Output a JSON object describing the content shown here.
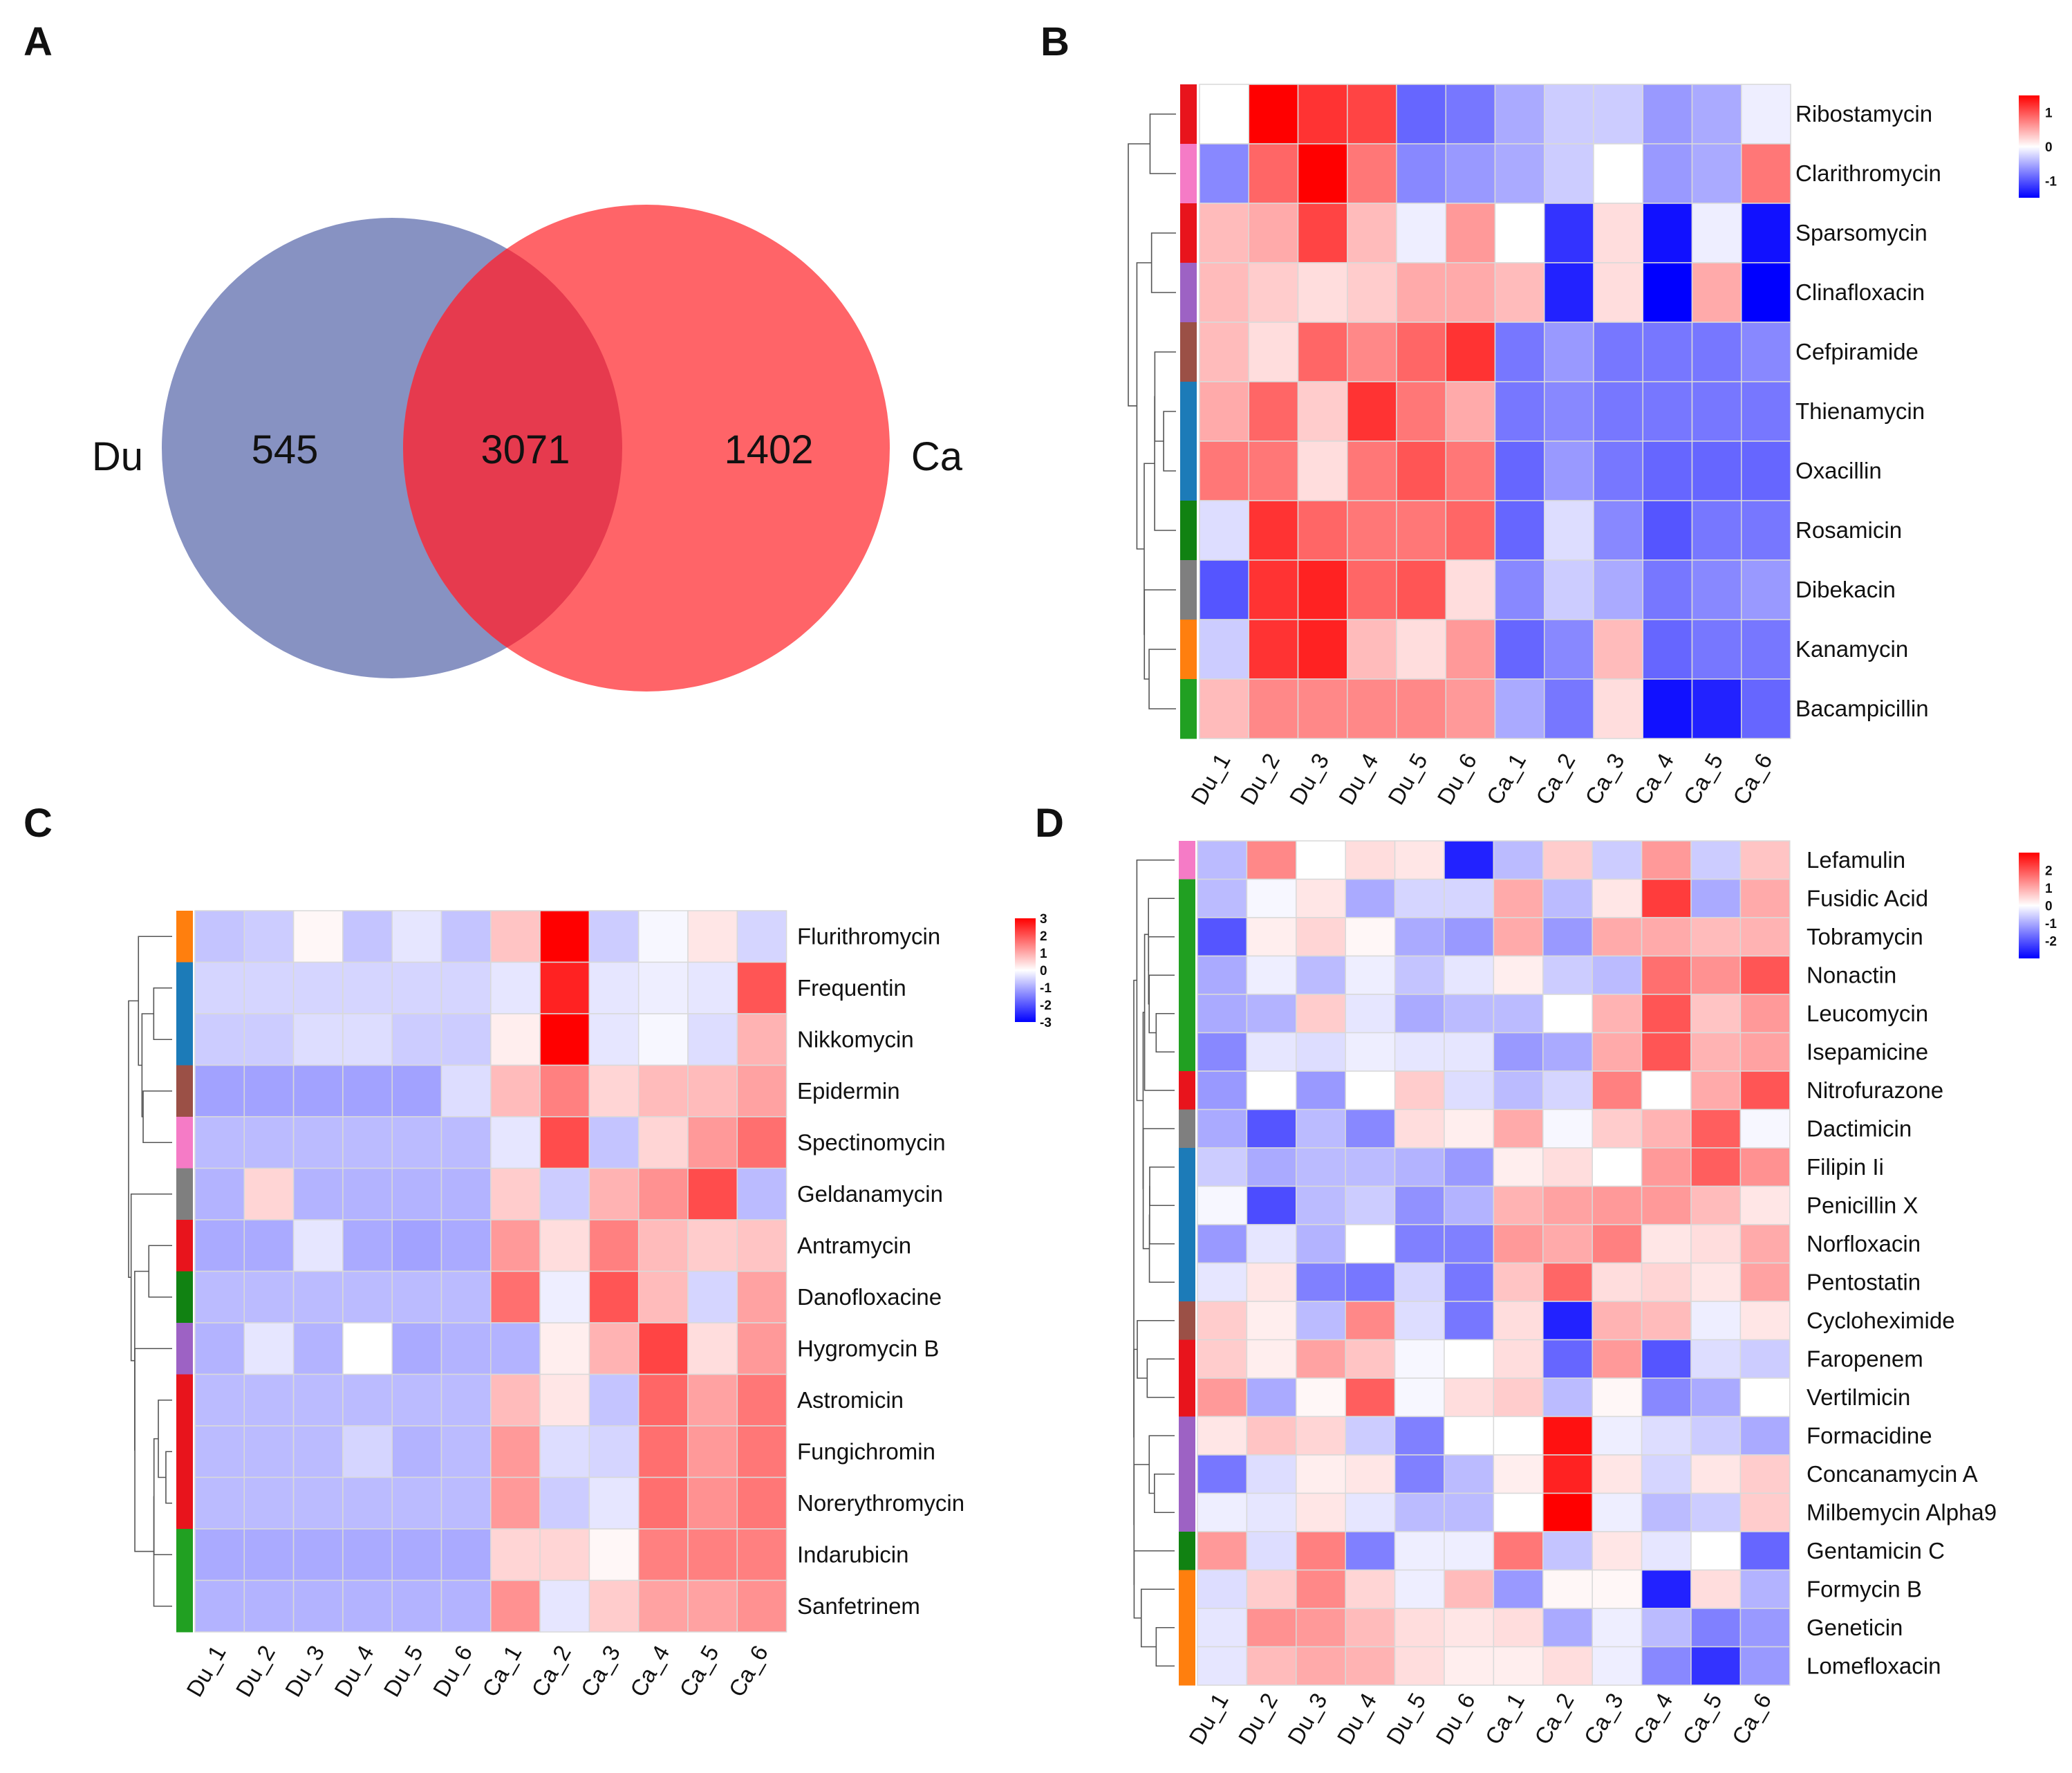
{
  "panel_labels": [
    "A",
    "B",
    "C",
    "D"
  ],
  "chart_data": [
    {
      "type": "venn",
      "panel": "A",
      "sets": [
        {
          "name": "Du",
          "unique": 545,
          "color": "#8792c2"
        },
        {
          "name": "Ca",
          "unique": 1402,
          "color": "#ff6468"
        }
      ],
      "intersection": 3071,
      "intersection_color": "#e63a4e"
    },
    {
      "type": "heatmap",
      "panel": "B",
      "columns": [
        "Du_1",
        "Du_2",
        "Du_3",
        "Du_4",
        "Du_5",
        "Du_6",
        "Ca_1",
        "Ca_2",
        "Ca_3",
        "Ca_4",
        "Ca_5",
        "Ca_6"
      ],
      "rows": [
        "Ribostamycin",
        "Clarithromycin",
        "Sparsomycin",
        "Clinafloxacin",
        "Cefpiramide",
        "Thienamycin",
        "Oxacillin",
        "Rosamicin",
        "Dibekacin",
        "Kanamycin",
        "Bacampicillin"
      ],
      "row_group_colors": [
        "#e8141c",
        "#f57bc6",
        "#e8141c",
        "#9d62c4",
        "#9b5046",
        "#1c7bb8",
        "#1c7bb8",
        "#118212",
        "#7f7f7f",
        "#ff7f0e",
        "#21a022"
      ],
      "values": [
        [
          0.0,
          1.5,
          1.2,
          1.1,
          -0.9,
          -0.8,
          -0.5,
          -0.3,
          -0.3,
          -0.6,
          -0.5,
          -0.1
        ],
        [
          -0.7,
          0.9,
          1.5,
          0.8,
          -0.7,
          -0.6,
          -0.5,
          -0.3,
          0.0,
          -0.6,
          -0.5,
          0.8
        ],
        [
          0.4,
          0.5,
          1.1,
          0.4,
          -0.1,
          0.6,
          0.0,
          -1.2,
          0.2,
          -1.4,
          -0.1,
          -1.4
        ],
        [
          0.4,
          0.3,
          0.2,
          0.3,
          0.5,
          0.5,
          0.4,
          -1.3,
          0.2,
          -1.5,
          0.5,
          -1.5
        ],
        [
          0.4,
          0.2,
          0.9,
          0.7,
          0.9,
          1.2,
          -0.8,
          -0.6,
          -0.8,
          -0.8,
          -0.8,
          -0.7
        ],
        [
          0.5,
          0.9,
          0.3,
          1.2,
          0.8,
          0.5,
          -0.8,
          -0.7,
          -0.8,
          -0.8,
          -0.8,
          -0.8
        ],
        [
          0.8,
          0.8,
          0.2,
          0.8,
          1.0,
          0.8,
          -0.9,
          -0.6,
          -0.8,
          -0.9,
          -0.9,
          -0.9
        ],
        [
          -0.2,
          1.2,
          0.9,
          0.8,
          0.8,
          0.9,
          -0.9,
          -0.2,
          -0.7,
          -1.0,
          -0.8,
          -0.8
        ],
        [
          -1.0,
          1.2,
          1.3,
          0.9,
          1.0,
          0.2,
          -0.7,
          -0.3,
          -0.5,
          -0.8,
          -0.7,
          -0.6
        ],
        [
          -0.3,
          1.2,
          1.3,
          0.4,
          0.2,
          0.6,
          -0.9,
          -0.7,
          0.4,
          -0.9,
          -0.8,
          -0.8
        ],
        [
          0.4,
          0.7,
          0.7,
          0.7,
          0.7,
          0.6,
          -0.5,
          -0.8,
          0.2,
          -1.4,
          -1.3,
          -0.9
        ]
      ],
      "legend": {
        "ticks": [
          1,
          0,
          -1
        ],
        "low_color": "#0000ff",
        "mid_color": "#ffffff",
        "high_color": "#ff0000",
        "min": -1.5,
        "max": 1.5
      }
    },
    {
      "type": "heatmap",
      "panel": "C",
      "columns": [
        "Du_1",
        "Du_2",
        "Du_3",
        "Du_4",
        "Du_5",
        "Du_6",
        "Ca_1",
        "Ca_2",
        "Ca_3",
        "Ca_4",
        "Ca_5",
        "Ca_6"
      ],
      "rows": [
        "Flurithromycin",
        "Frequentin",
        "Nikkomycin",
        "Epidermin",
        "Spectinomycin",
        "Geldanamycin",
        "Antramycin",
        "Danofloxacine",
        "Hygromycin B",
        "Astromicin",
        "Fungichromin",
        "Norerythromycin",
        "Indarubicin",
        "Sanfetrinem"
      ],
      "row_group_colors": [
        "#ff7f0e",
        "#1c7bb8",
        "#1c7bb8",
        "#9b5046",
        "#f57bc6",
        "#7f7f7f",
        "#e8141c",
        "#118212",
        "#9d62c4",
        "#e8141c",
        "#e8141c",
        "#e8141c",
        "#21a022",
        "#21a022"
      ],
      "values": [
        [
          -0.7,
          -0.6,
          0.1,
          -0.7,
          -0.3,
          -0.7,
          0.7,
          3.0,
          -0.6,
          -0.1,
          0.3,
          -0.5
        ],
        [
          -0.5,
          -0.5,
          -0.5,
          -0.5,
          -0.5,
          -0.5,
          -0.3,
          2.6,
          -0.3,
          -0.2,
          -0.3,
          2.0
        ],
        [
          -0.6,
          -0.6,
          -0.4,
          -0.4,
          -0.6,
          -0.6,
          0.2,
          3.0,
          -0.3,
          -0.1,
          -0.4,
          0.9
        ],
        [
          -1.1,
          -1.1,
          -1.1,
          -1.1,
          -1.1,
          -0.4,
          0.8,
          1.5,
          0.5,
          0.8,
          0.8,
          1.1
        ],
        [
          -0.8,
          -0.8,
          -0.8,
          -0.8,
          -0.8,
          -0.8,
          -0.3,
          2.1,
          -0.7,
          0.5,
          1.2,
          1.7
        ],
        [
          -0.9,
          0.5,
          -0.9,
          -0.9,
          -0.9,
          -0.9,
          0.6,
          -0.6,
          0.9,
          1.3,
          2.1,
          -0.8
        ],
        [
          -1.0,
          -1.0,
          -0.3,
          -1.0,
          -1.1,
          -1.0,
          1.2,
          0.4,
          1.5,
          0.8,
          0.6,
          0.7
        ],
        [
          -0.8,
          -0.8,
          -0.8,
          -0.8,
          -0.8,
          -0.8,
          1.7,
          -0.2,
          2.0,
          0.8,
          -0.5,
          1.1
        ],
        [
          -0.9,
          -0.3,
          -0.9,
          0.0,
          -1.0,
          -0.9,
          -0.9,
          0.2,
          0.9,
          2.2,
          0.4,
          1.2
        ],
        [
          -0.8,
          -0.8,
          -0.8,
          -0.8,
          -0.8,
          -0.8,
          0.8,
          0.3,
          -0.7,
          1.8,
          1.1,
          1.6
        ],
        [
          -0.8,
          -0.8,
          -0.8,
          -0.5,
          -0.9,
          -0.8,
          1.2,
          -0.4,
          -0.5,
          1.7,
          1.2,
          1.6
        ],
        [
          -0.8,
          -0.8,
          -0.8,
          -0.8,
          -0.8,
          -0.8,
          1.2,
          -0.6,
          -0.3,
          1.7,
          1.3,
          1.6
        ],
        [
          -1.0,
          -1.0,
          -1.0,
          -1.0,
          -1.0,
          -1.0,
          0.5,
          0.5,
          0.1,
          1.5,
          1.5,
          1.5
        ],
        [
          -0.9,
          -0.9,
          -0.9,
          -0.9,
          -0.9,
          -0.9,
          1.3,
          -0.3,
          0.6,
          1.1,
          1.1,
          1.3
        ]
      ],
      "legend": {
        "ticks": [
          3,
          2,
          1,
          0,
          -1,
          -2,
          -3
        ],
        "low_color": "#0000ff",
        "mid_color": "#ffffff",
        "high_color": "#ff0000",
        "min": -3,
        "max": 3
      }
    },
    {
      "type": "heatmap",
      "panel": "D",
      "columns": [
        "Du_1",
        "Du_2",
        "Du_3",
        "Du_4",
        "Du_5",
        "Du_6",
        "Ca_1",
        "Ca_2",
        "Ca_3",
        "Ca_4",
        "Ca_5",
        "Ca_6"
      ],
      "rows": [
        "Lefamulin",
        "Fusidic Acid",
        "Tobramycin",
        "Nonactin",
        "Leucomycin",
        "Isepamicine",
        "Nitrofurazone",
        "Dactimicin",
        "Filipin Ii",
        "Penicillin X",
        "Norfloxacin",
        "Pentostatin",
        "Cycloheximide",
        "Faropenem",
        "Vertilmicin",
        "Formacidine",
        "Concanamycin A",
        "Milbemycin Alpha9",
        "Gentamicin C",
        "Formycin B",
        "Geneticin",
        "Lomefloxacin"
      ],
      "row_group_colors": [
        "#f57bc6",
        "#21a022",
        "#21a022",
        "#21a022",
        "#21a022",
        "#21a022",
        "#e8141c",
        "#7f7f7f",
        "#1c7bb8",
        "#1c7bb8",
        "#1c7bb8",
        "#1c7bb8",
        "#9b5046",
        "#e8141c",
        "#e8141c",
        "#9d62c4",
        "#9d62c4",
        "#9d62c4",
        "#118212",
        "#ff7f0e",
        "#ff7f0e",
        "#ff7f0e"
      ],
      "values": [
        [
          -0.8,
          1.4,
          0.0,
          0.4,
          0.3,
          -2.6,
          -0.8,
          0.6,
          -0.6,
          1.2,
          -0.6,
          0.7
        ],
        [
          -0.8,
          -0.1,
          0.3,
          -1.0,
          -0.5,
          -0.5,
          1.0,
          -0.8,
          0.3,
          2.3,
          -1.0,
          1.0
        ],
        [
          -2.0,
          0.2,
          0.5,
          0.1,
          -1.0,
          -1.2,
          1.0,
          -1.2,
          1.0,
          1.0,
          0.8,
          0.9
        ],
        [
          -1.0,
          -0.2,
          -0.8,
          -0.2,
          -0.7,
          -0.3,
          0.2,
          -0.6,
          -0.8,
          1.7,
          1.3,
          2.0
        ],
        [
          -1.0,
          -0.9,
          0.6,
          -0.3,
          -1.0,
          -0.8,
          -0.8,
          0.0,
          0.9,
          2.0,
          0.7,
          1.2
        ],
        [
          -1.4,
          -0.3,
          -0.4,
          -0.2,
          -0.3,
          -0.3,
          -1.2,
          -1.0,
          1.0,
          2.0,
          0.9,
          1.1
        ],
        [
          -1.2,
          0.0,
          -1.2,
          0.0,
          0.6,
          -0.4,
          -0.8,
          -0.5,
          1.5,
          0.0,
          1.0,
          2.0
        ],
        [
          -1.0,
          -2.0,
          -0.8,
          -1.4,
          0.4,
          0.2,
          1.0,
          -0.1,
          0.6,
          0.9,
          1.9,
          -0.1
        ],
        [
          -0.6,
          -1.0,
          -0.8,
          -0.8,
          -0.9,
          -1.2,
          0.2,
          0.4,
          0.0,
          1.2,
          1.9,
          1.3
        ],
        [
          -0.1,
          -2.1,
          -0.8,
          -0.6,
          -1.3,
          -0.9,
          0.9,
          1.1,
          1.2,
          1.2,
          0.8,
          0.3
        ],
        [
          -1.2,
          -0.3,
          -0.9,
          0.0,
          -1.5,
          -1.5,
          1.2,
          1.0,
          1.5,
          0.3,
          0.4,
          1.0
        ],
        [
          -0.3,
          0.3,
          -1.5,
          -1.6,
          -0.5,
          -1.6,
          0.7,
          1.8,
          0.4,
          0.5,
          0.3,
          1.1
        ],
        [
          0.6,
          0.2,
          -0.8,
          1.4,
          -0.4,
          -1.6,
          0.4,
          -2.6,
          0.9,
          0.8,
          -0.2,
          0.3
        ],
        [
          0.6,
          0.2,
          1.1,
          0.7,
          -0.1,
          0.0,
          0.4,
          -1.8,
          1.2,
          -2.0,
          -0.4,
          -0.6
        ],
        [
          1.2,
          -1.0,
          0.1,
          1.9,
          -0.1,
          0.4,
          0.6,
          -0.8,
          0.1,
          -1.4,
          -1.0,
          0.0
        ],
        [
          0.3,
          0.7,
          0.5,
          -0.6,
          -1.5,
          0.0,
          0.0,
          2.8,
          -0.2,
          -0.4,
          -0.6,
          -1.0
        ],
        [
          -1.6,
          -0.4,
          0.2,
          0.3,
          -1.5,
          -0.8,
          0.2,
          2.6,
          0.3,
          -0.5,
          0.3,
          0.6
        ],
        [
          -0.2,
          -0.3,
          0.3,
          -0.3,
          -0.8,
          -0.8,
          0.0,
          3.0,
          -0.2,
          -0.8,
          -0.6,
          0.6
        ],
        [
          1.2,
          -0.4,
          1.5,
          -1.5,
          -0.2,
          -0.2,
          1.6,
          -0.7,
          0.3,
          -0.3,
          0.0,
          -1.8
        ],
        [
          -0.4,
          0.6,
          1.4,
          0.5,
          -0.2,
          0.8,
          -1.2,
          0.1,
          0.1,
          -2.6,
          0.4,
          -0.9
        ],
        [
          -0.3,
          1.3,
          1.2,
          0.8,
          0.4,
          0.3,
          0.4,
          -1.0,
          -0.2,
          -0.8,
          -1.5,
          -1.2
        ],
        [
          -0.3,
          0.8,
          1.0,
          0.9,
          0.4,
          0.2,
          0.2,
          0.4,
          -0.2,
          -1.4,
          -2.4,
          -1.2
        ]
      ],
      "legend": {
        "ticks": [
          2,
          1,
          0,
          -1,
          -2
        ],
        "low_color": "#0000ff",
        "mid_color": "#ffffff",
        "high_color": "#ff0000",
        "min": -3,
        "max": 3
      }
    }
  ]
}
